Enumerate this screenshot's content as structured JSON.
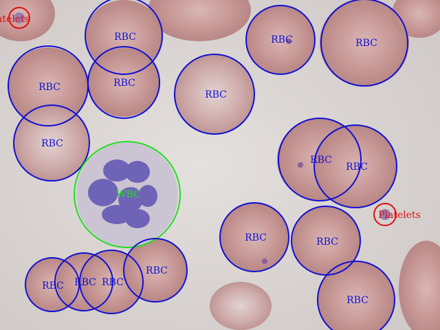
{
  "image": {
    "subject": "blood smear micrograph with detection overlays",
    "background_color": "#dcd7d4",
    "cell_color": "#c99a98",
    "wbc_nucleus_color": "#6f63b7"
  },
  "annotations": {
    "colors": {
      "RBC": "#1010d0",
      "WBC": "#22dd22",
      "Platelets": "#dd1111"
    },
    "detections": [
      {
        "label": "Platelets",
        "class": "Platelets"
      },
      {
        "label": "RBC",
        "class": "RBC"
      },
      {
        "label": "RBC",
        "class": "RBC"
      },
      {
        "label": "RBC",
        "class": "RBC"
      },
      {
        "label": "RBC",
        "class": "RBC"
      },
      {
        "label": "RBC",
        "class": "RBC"
      },
      {
        "label": "RBC",
        "class": "RBC"
      },
      {
        "label": "RBC",
        "class": "RBC"
      },
      {
        "label": "WBC",
        "class": "WBC"
      },
      {
        "label": "RBC",
        "class": "RBC"
      },
      {
        "label": "RBC",
        "class": "RBC"
      },
      {
        "label": "Platelets",
        "class": "Platelets"
      },
      {
        "label": "RBC",
        "class": "RBC"
      },
      {
        "label": "RBC",
        "class": "RBC"
      },
      {
        "label": "RBC",
        "class": "RBC"
      },
      {
        "label": "RBC",
        "class": "RBC"
      },
      {
        "label": "RBC",
        "class": "RBC"
      },
      {
        "label": "RBC",
        "class": "RBC"
      },
      {
        "label": "RBC",
        "class": "RBC"
      }
    ]
  }
}
